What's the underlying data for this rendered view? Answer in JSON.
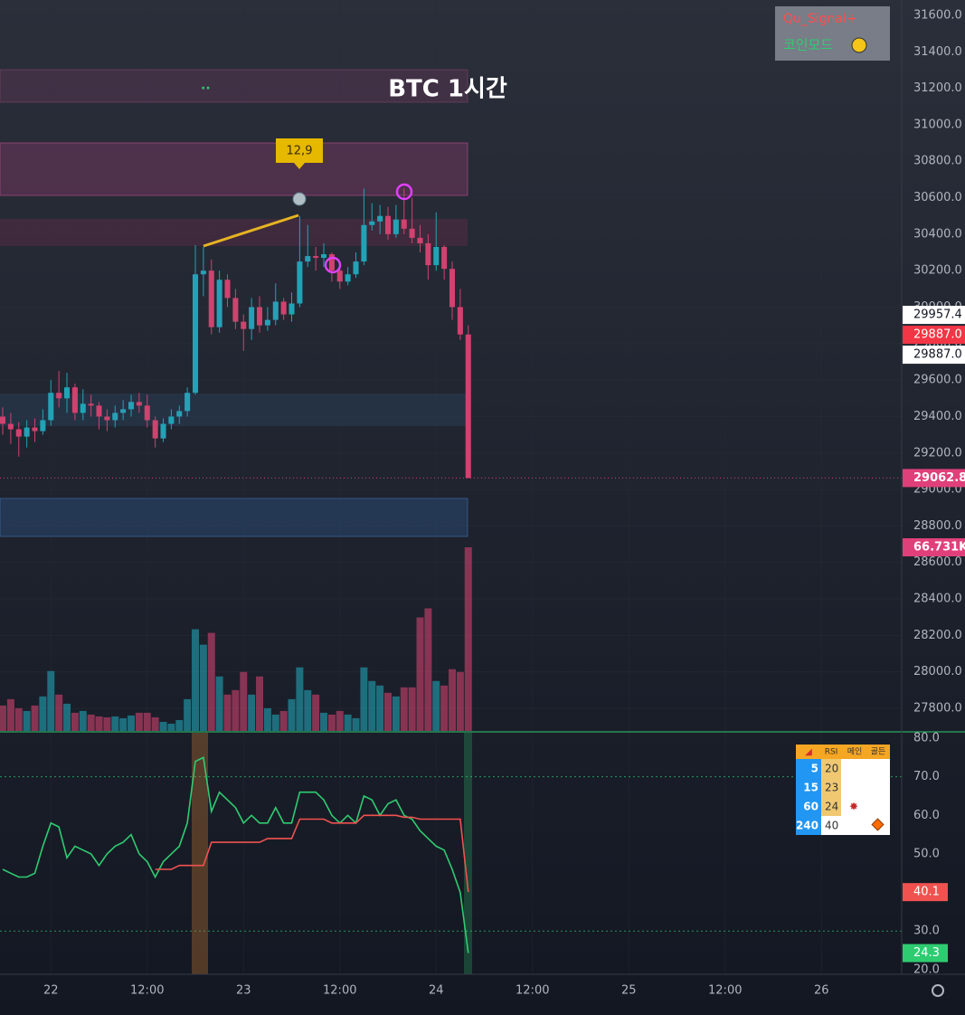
{
  "chart_data": {
    "type": "candlestick",
    "title": "BTC 1시간",
    "annotation": "12,9",
    "indicators": [
      "Qu_Signal+",
      "코인모드"
    ],
    "up_color": "#22a3b5",
    "down_color": "#d0426f",
    "x": [
      0,
      1,
      2,
      3,
      4,
      5,
      6,
      7,
      8,
      9,
      10,
      11,
      12,
      13,
      14,
      15,
      16,
      17,
      18,
      19,
      20,
      21,
      22,
      23,
      24,
      25,
      26,
      27,
      28,
      29,
      30,
      31,
      32,
      33,
      34,
      35,
      36,
      37,
      38,
      39,
      40,
      41,
      42,
      43,
      44,
      45,
      46,
      47,
      48,
      49,
      50,
      51,
      52,
      53,
      54,
      55,
      56,
      57,
      58
    ],
    "open": [
      29400,
      29360,
      29330,
      29290,
      29340,
      29320,
      29380,
      29530,
      29500,
      29560,
      29420,
      29470,
      29460,
      29400,
      29380,
      29420,
      29440,
      29480,
      29460,
      29380,
      29280,
      29360,
      29400,
      29430,
      29530,
      30180,
      30200,
      29890,
      30150,
      30050,
      29920,
      29880,
      30000,
      29900,
      29930,
      30030,
      29960,
      30020,
      30250,
      30280,
      30270,
      30290,
      30200,
      30140,
      30180,
      30250,
      30450,
      30470,
      30500,
      30400,
      30480,
      30430,
      30380,
      30350,
      30230,
      30330,
      30210,
      30000,
      29850
    ],
    "high": [
      29450,
      29420,
      29370,
      29380,
      29390,
      29440,
      29600,
      29650,
      29640,
      29580,
      29550,
      29520,
      29480,
      29440,
      29460,
      29490,
      29520,
      29530,
      29520,
      29400,
      29390,
      29440,
      29460,
      29560,
      30340,
      30330,
      30260,
      30200,
      30180,
      30100,
      29960,
      30050,
      30060,
      30000,
      30130,
      30050,
      30080,
      30500,
      30450,
      30330,
      30350,
      30300,
      30220,
      30220,
      30300,
      30650,
      30570,
      30560,
      30550,
      30560,
      30650,
      30600,
      30450,
      30400,
      30520,
      30340,
      30250,
      30100,
      29900
    ],
    "low": [
      29300,
      29250,
      29180,
      29230,
      29260,
      29300,
      29350,
      29450,
      29420,
      29380,
      29380,
      29400,
      29330,
      29320,
      29340,
      29380,
      29400,
      29420,
      29340,
      29230,
      29260,
      29330,
      29360,
      29400,
      29520,
      30060,
      29850,
      29860,
      30000,
      29880,
      29760,
      29820,
      29860,
      29870,
      29900,
      29930,
      29920,
      30000,
      30220,
      30200,
      30220,
      30140,
      30100,
      30120,
      30160,
      30230,
      30420,
      30400,
      30370,
      30380,
      30400,
      30350,
      30300,
      30150,
      30200,
      30150,
      29930,
      29820,
      29062.8
    ],
    "close": [
      29360,
      29330,
      29290,
      29340,
      29320,
      29380,
      29530,
      29500,
      29560,
      29420,
      29470,
      29460,
      29400,
      29380,
      29420,
      29440,
      29480,
      29460,
      29380,
      29280,
      29360,
      29400,
      29430,
      29530,
      30180,
      30200,
      29890,
      30150,
      30050,
      29920,
      29880,
      30000,
      29900,
      29930,
      30030,
      29960,
      30020,
      30250,
      30280,
      30270,
      30290,
      30200,
      30140,
      30180,
      30250,
      30450,
      30470,
      30500,
      30400,
      30480,
      30430,
      30380,
      30350,
      30230,
      30330,
      30210,
      30000,
      29850,
      29062.8
    ],
    "volume": {
      "values": [
        9240,
        11550,
        8250,
        7260,
        9240,
        12540,
        21780,
        13200,
        9900,
        6600,
        7260,
        5940,
        5280,
        4950,
        5280,
        4620,
        5610,
        6600,
        6600,
        4950,
        3300,
        2640,
        3960,
        11550,
        36960,
        31350,
        35640,
        19800,
        13200,
        14850,
        21450,
        13200,
        19800,
        8250,
        5940,
        7260,
        11550,
        23100,
        14850,
        13200,
        6600,
        5940,
        7260,
        5940,
        4620,
        23100,
        18150,
        16500,
        13860,
        12540,
        15840,
        15840,
        41250,
        44550,
        18150,
        16500,
        22440,
        21450,
        66731
      ],
      "last_label": "66.731K"
    },
    "price_lines": [
      {
        "value": 29957.4,
        "label": "29957.4",
        "color": "#ffffff"
      },
      {
        "value": 29887,
        "label": "29887.0",
        "color": "#f23645"
      },
      {
        "value": 29887,
        "label": "29887.0",
        "color": "#ffffff"
      }
    ],
    "xlim": [
      -0.34,
      112
    ],
    "xticks": [
      {
        "value": 6,
        "label": "22"
      },
      {
        "value": 18,
        "label": "12:00"
      },
      {
        "value": 30,
        "label": "23"
      },
      {
        "value": 42,
        "label": "12:00"
      },
      {
        "value": 54,
        "label": "24"
      },
      {
        "value": 66,
        "label": "12:00"
      },
      {
        "value": 78,
        "label": "25"
      },
      {
        "value": 90,
        "label": "12:00"
      },
      {
        "value": 102,
        "label": "26"
      }
    ],
    "ylim": [
      27676,
      31684
    ],
    "yticks": [
      {
        "value": 31600,
        "label": "31600.0"
      },
      {
        "value": 31400,
        "label": "31400.0"
      },
      {
        "value": 31200,
        "label": "31200.0"
      },
      {
        "value": 31000,
        "label": "31000.0"
      },
      {
        "value": 30800,
        "label": "30800.0"
      },
      {
        "value": 30600,
        "label": "30600.0"
      },
      {
        "value": 30400,
        "label": "30400.0"
      },
      {
        "value": 30200,
        "label": "30200.0"
      },
      {
        "value": 30000,
        "label": "30000.0"
      },
      {
        "value": 29800,
        "label": "29800.0"
      },
      {
        "value": 29600,
        "label": "29600.0"
      },
      {
        "value": 29400,
        "label": "29400.0"
      },
      {
        "value": 29200,
        "label": "29200.0"
      },
      {
        "value": 29000,
        "label": "29000.0"
      },
      {
        "value": 28800,
        "label": "28800.0"
      },
      {
        "value": 28600,
        "label": "28600.0"
      },
      {
        "value": 28400,
        "label": "28400.0"
      },
      {
        "value": 28200,
        "label": "28200.0"
      },
      {
        "value": 28000,
        "label": "28000.0"
      },
      {
        "value": 27800,
        "label": "27800.0"
      }
    ],
    "rsi": {
      "ylim": [
        18.8,
        81.4
      ],
      "yticks": [
        {
          "value": 80,
          "label": "80.0"
        },
        {
          "value": 70,
          "label": "70.0"
        },
        {
          "value": 60,
          "label": "60.0"
        },
        {
          "value": 50,
          "label": "50.0"
        },
        {
          "value": 40,
          "label": "40.0"
        },
        {
          "value": 30,
          "label": "30.0"
        },
        {
          "value": 20,
          "label": "20.0"
        }
      ],
      "levels": [
        70,
        30
      ],
      "series": [
        {
          "color": "#2ecc71",
          "values": [
            46,
            45,
            44,
            44,
            45,
            52,
            58,
            57,
            49,
            52,
            51,
            50,
            47,
            50,
            52,
            53,
            55,
            50,
            48,
            44,
            48,
            50,
            52,
            58,
            74,
            75,
            61,
            66,
            64,
            62,
            58,
            60,
            58,
            58,
            62,
            58,
            58,
            66,
            66,
            66,
            64,
            60,
            58,
            60,
            58,
            65,
            64,
            60,
            63,
            64,
            60,
            59,
            56,
            54,
            52,
            51,
            46,
            40,
            24.3
          ]
        },
        {
          "color": "#f0524f",
          "values": [
            null,
            null,
            null,
            null,
            null,
            null,
            null,
            null,
            null,
            null,
            null,
            null,
            null,
            null,
            null,
            null,
            null,
            null,
            null,
            46,
            46,
            46,
            47,
            47,
            47,
            47,
            53,
            53,
            53,
            53,
            53,
            53,
            53,
            54,
            54,
            54,
            54,
            59,
            59,
            59,
            59,
            58,
            58,
            58,
            58,
            60,
            60,
            60,
            60,
            60,
            59.5,
            59.5,
            59,
            59,
            59,
            59,
            59,
            59,
            40.1
          ]
        }
      ],
      "table": {
        "header": [
          "RSI",
          "메인",
          "골든"
        ],
        "rows": [
          [
            5,
            20
          ],
          [
            15,
            23
          ],
          [
            60,
            24
          ],
          [
            240,
            40
          ]
        ]
      }
    }
  }
}
